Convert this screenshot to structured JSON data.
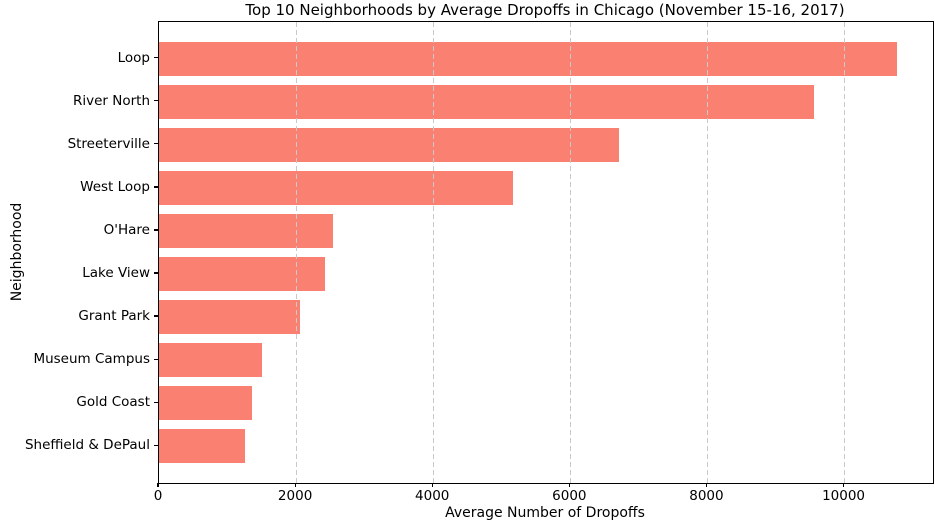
{
  "chart_data": {
    "type": "bar",
    "orientation": "horizontal",
    "title": "Top 10 Neighborhoods by Average Dropoffs in Chicago (November 15-16, 2017)",
    "xlabel": "Average Number of Dropoffs",
    "ylabel": "Neighborhood",
    "categories": [
      "Loop",
      "River North",
      "Streeterville",
      "West Loop",
      "O'Hare",
      "Lake View",
      "Grant Park",
      "Museum Campus",
      "Gold Coast",
      "Sheffield & DePaul"
    ],
    "values": [
      10760,
      9550,
      6715,
      5170,
      2540,
      2425,
      2060,
      1500,
      1360,
      1260
    ],
    "xticks": [
      0,
      2000,
      4000,
      6000,
      8000,
      10000
    ],
    "xtick_labels": [
      "0",
      "2000",
      "4000",
      "6000",
      "8000",
      "10000"
    ],
    "xlim": [
      0,
      11290
    ],
    "bar_color": "#FA8072",
    "grid": {
      "axis": "x",
      "style": "dashed",
      "color": "#c9c9c9",
      "above_bars": true
    },
    "legend": "none",
    "background_color": "#ffffff",
    "spine_color": "#000000"
  }
}
